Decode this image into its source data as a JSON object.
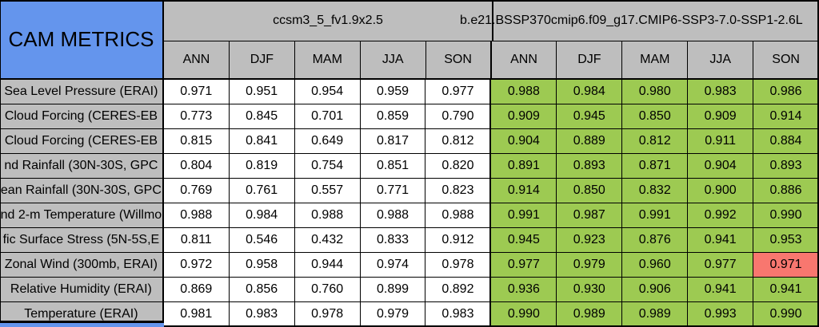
{
  "chart_data": {
    "type": "table",
    "title": "CAM METRICS",
    "column_groups": [
      "ccsm3_5_fv1.9x2.5",
      "b.e21.BSSP370cmip6.f09_g17.CMIP6-SSP3-7.0-SSP1-2.6L"
    ],
    "season_columns": [
      "ANN",
      "DJF",
      "MAM",
      "JJA",
      "SON"
    ],
    "rows": [
      {
        "label": "Sea Level Pressure (ERAI)",
        "model1": [
          "0.971",
          "0.951",
          "0.954",
          "0.959",
          "0.977"
        ],
        "model2": [
          "0.988",
          "0.984",
          "0.980",
          "0.983",
          "0.986"
        ]
      },
      {
        "label": "Cloud Forcing (CERES-EB",
        "model1": [
          "0.773",
          "0.845",
          "0.701",
          "0.859",
          "0.790"
        ],
        "model2": [
          "0.909",
          "0.945",
          "0.850",
          "0.909",
          "0.914"
        ]
      },
      {
        "label": "Cloud Forcing (CERES-EB",
        "model1": [
          "0.815",
          "0.841",
          "0.649",
          "0.817",
          "0.812"
        ],
        "model2": [
          "0.904",
          "0.889",
          "0.812",
          "0.911",
          "0.884"
        ]
      },
      {
        "label": "nd Rainfall (30N-30S, GPC",
        "model1": [
          "0.804",
          "0.819",
          "0.754",
          "0.851",
          "0.820"
        ],
        "model2": [
          "0.891",
          "0.893",
          "0.871",
          "0.904",
          "0.893"
        ]
      },
      {
        "label": "ean Rainfall (30N-30S, GPC",
        "model1": [
          "0.769",
          "0.761",
          "0.557",
          "0.771",
          "0.823"
        ],
        "model2": [
          "0.914",
          "0.850",
          "0.832",
          "0.900",
          "0.886"
        ]
      },
      {
        "label": "nd 2-m Temperature (Willmo",
        "model1": [
          "0.988",
          "0.984",
          "0.988",
          "0.988",
          "0.988"
        ],
        "model2": [
          "0.991",
          "0.987",
          "0.991",
          "0.992",
          "0.990"
        ]
      },
      {
        "label": "fic Surface Stress (5N-5S,E",
        "model1": [
          "0.811",
          "0.546",
          "0.432",
          "0.833",
          "0.912"
        ],
        "model2": [
          "0.945",
          "0.923",
          "0.876",
          "0.941",
          "0.953"
        ]
      },
      {
        "label": "Zonal Wind (300mb, ERAI)",
        "model1": [
          "0.972",
          "0.958",
          "0.944",
          "0.974",
          "0.978"
        ],
        "model2": [
          "0.977",
          "0.979",
          "0.960",
          "0.977",
          "0.971"
        ]
      },
      {
        "label": "Relative Humidity (ERAI)",
        "model1": [
          "0.869",
          "0.856",
          "0.760",
          "0.899",
          "0.892"
        ],
        "model2": [
          "0.936",
          "0.930",
          "0.906",
          "0.941",
          "0.941"
        ]
      },
      {
        "label": "Temperature (ERAI)",
        "model1": [
          "0.981",
          "0.983",
          "0.978",
          "0.979",
          "0.983"
        ],
        "model2": [
          "0.990",
          "0.989",
          "0.989",
          "0.993",
          "0.990"
        ]
      }
    ],
    "highlight_cell": {
      "row_index": 7,
      "model": 2,
      "season_index": 4
    },
    "layout": {
      "model2_cells_shaded": true,
      "grid": "on",
      "legend": "none"
    },
    "colors": {
      "header_blue": "#6495ED",
      "header_gray": "#BEBEBE",
      "cell_white": "#FFFFFF",
      "improved_green": "#9DCA52",
      "flagged_red": "#F8776F",
      "border_black": "#000000"
    }
  }
}
